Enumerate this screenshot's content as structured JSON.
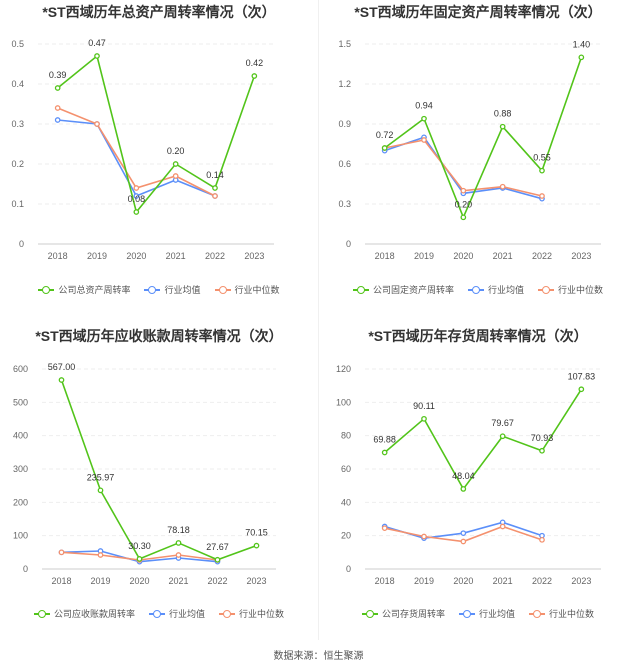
{
  "footer": {
    "source": "数据来源：恒生聚源"
  },
  "chart_data": [
    {
      "type": "line",
      "title": "*ST西域历年总资产周转率情况（次）",
      "categories": [
        "2018",
        "2019",
        "2020",
        "2021",
        "2022",
        "2023"
      ],
      "ylim": [
        0,
        0.5
      ],
      "yticks": [
        "0",
        "0.1",
        "0.2",
        "0.3",
        "0.4",
        "0.5"
      ],
      "grid": true,
      "legend_position": "bottom",
      "series": [
        {
          "name": "公司总资产周转率",
          "color": "#52c41a",
          "values": [
            0.39,
            0.47,
            0.08,
            0.2,
            0.14,
            0.42
          ],
          "labels": [
            "0.39",
            "0.47",
            "0.08",
            "0.20",
            "0.14",
            "0.42"
          ]
        },
        {
          "name": "行业均值",
          "color": "#5b8ff9",
          "values": [
            0.31,
            0.3,
            0.12,
            0.16,
            0.12,
            null
          ]
        },
        {
          "name": "行业中位数",
          "color": "#f4916e",
          "values": [
            0.34,
            0.3,
            0.14,
            0.17,
            0.12,
            null
          ]
        }
      ]
    },
    {
      "type": "line",
      "title": "*ST西域历年固定资产周转率情况（次）",
      "categories": [
        "2018",
        "2019",
        "2020",
        "2021",
        "2022",
        "2023"
      ],
      "ylim": [
        0,
        1.5
      ],
      "yticks": [
        "0",
        "0.3",
        "0.6",
        "0.9",
        "1.2",
        "1.5"
      ],
      "grid": true,
      "legend_position": "bottom",
      "series": [
        {
          "name": "公司固定资产周转率",
          "color": "#52c41a",
          "values": [
            0.72,
            0.94,
            0.2,
            0.88,
            0.55,
            1.4
          ],
          "labels": [
            "0.72",
            "0.94",
            "0.20",
            "0.88",
            "0.55",
            "1.40"
          ]
        },
        {
          "name": "行业均值",
          "color": "#5b8ff9",
          "values": [
            0.7,
            0.8,
            0.38,
            0.42,
            0.34,
            null
          ]
        },
        {
          "name": "行业中位数",
          "color": "#f4916e",
          "values": [
            0.72,
            0.78,
            0.4,
            0.43,
            0.36,
            null
          ]
        }
      ]
    },
    {
      "type": "line",
      "title": "*ST西域历年应收账款周转率情况（次）",
      "categories": [
        "2018",
        "2019",
        "2020",
        "2021",
        "2022",
        "2023"
      ],
      "ylim": [
        0,
        600
      ],
      "yticks": [
        "0",
        "100",
        "200",
        "300",
        "400",
        "500",
        "600"
      ],
      "grid": true,
      "legend_position": "bottom",
      "series": [
        {
          "name": "公司应收账款周转率",
          "color": "#52c41a",
          "values": [
            567.0,
            235.97,
            30.3,
            78.18,
            27.67,
            70.15
          ],
          "labels": [
            "567.00",
            "235.97",
            "30.30",
            "78.18",
            "27.67",
            "70.15"
          ]
        },
        {
          "name": "行业均值",
          "color": "#5b8ff9",
          "values": [
            50,
            54,
            22,
            33,
            22,
            null
          ]
        },
        {
          "name": "行业中位数",
          "color": "#f4916e",
          "values": [
            50,
            42,
            27,
            42,
            27,
            null
          ]
        }
      ]
    },
    {
      "type": "line",
      "title": "*ST西域历年存货周转率情况（次）",
      "categories": [
        "2018",
        "2019",
        "2020",
        "2021",
        "2022",
        "2023"
      ],
      "ylim": [
        0,
        120
      ],
      "yticks": [
        "0",
        "20",
        "40",
        "60",
        "80",
        "100",
        "120"
      ],
      "grid": true,
      "legend_position": "bottom",
      "series": [
        {
          "name": "公司存货周转率",
          "color": "#52c41a",
          "values": [
            69.88,
            90.11,
            48.04,
            79.67,
            70.93,
            107.83
          ],
          "labels": [
            "69.88",
            "90.11",
            "48.04",
            "79.67",
            "70.93",
            "107.83"
          ]
        },
        {
          "name": "行业均值",
          "color": "#5b8ff9",
          "values": [
            25.5,
            18.5,
            21.5,
            28.0,
            20.0,
            null
          ]
        },
        {
          "name": "行业中位数",
          "color": "#f4916e",
          "values": [
            24.5,
            19.5,
            16.5,
            25.5,
            17.5,
            null
          ]
        }
      ]
    }
  ]
}
